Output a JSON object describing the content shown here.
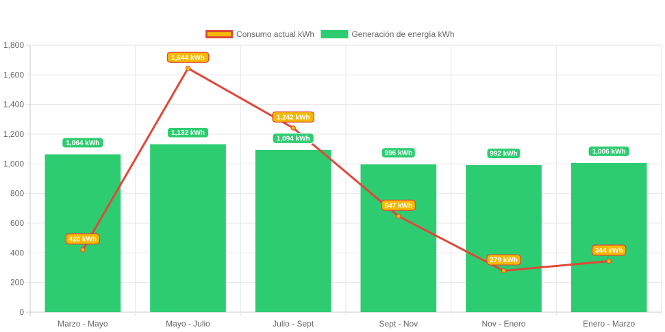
{
  "chart_data": {
    "type": "bar",
    "categories": [
      "Marzo - Mayo",
      "Mayo - Julio",
      "Julio - Sept",
      "Sept - Nov",
      "Nov - Enero",
      "Enero - Marzo"
    ],
    "series": [
      {
        "name": "Consumo actual kWh",
        "type": "line",
        "values": [
          420,
          1644,
          1242,
          647,
          279,
          344
        ],
        "labels": [
          "420 kWh",
          "1,644 kWh",
          "1,242 kWh",
          "647 kWh",
          "279 kWh",
          "344 kWh"
        ],
        "line_color": "#e0473a",
        "fill_color": "#f5b800"
      },
      {
        "name": "Generación de energía kWh",
        "type": "bar",
        "values": [
          1064,
          1132,
          1094,
          996,
          992,
          1006
        ],
        "labels": [
          "1,064 kWh",
          "1,132 kWh",
          "1,094 kWh",
          "996 kWh",
          "992 kWh",
          "1,006 kWh"
        ],
        "color": "#2ecc71"
      }
    ],
    "ylim": [
      0,
      1800
    ],
    "yticks": [
      0,
      200,
      400,
      600,
      800,
      1000,
      1200,
      1400,
      1600,
      1800
    ],
    "ytick_labels": [
      "0",
      "200",
      "400",
      "600",
      "800",
      "1,000",
      "1,200",
      "1,400",
      "1,600",
      "1,800"
    ],
    "grid": true,
    "legend_position": "top-center",
    "title": "",
    "xlabel": "",
    "ylabel": ""
  }
}
